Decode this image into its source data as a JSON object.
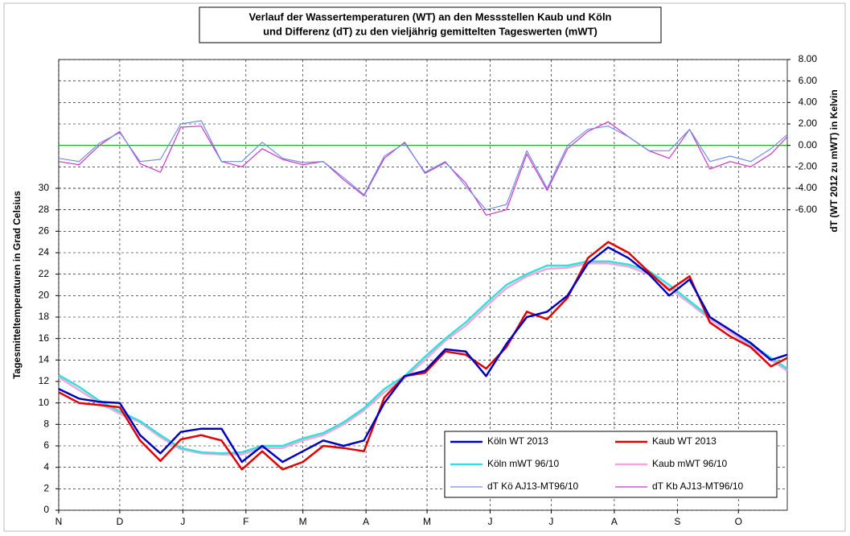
{
  "chart_data": {
    "type": "line",
    "title": [
      "Verlauf der Wassertemperaturen (WT) an den Messstellen Kaub und Köln",
      "und Differenz (dT) zu den vieljährig gemittelten Tageswerten (mWT)"
    ],
    "ylabel": "Tagesmitteltemperaturen in Grad Celsius",
    "y2label": "dT (WT 2012 zu mWT) in Kelvin",
    "x": [
      0,
      10,
      20,
      30,
      40,
      50,
      60,
      70,
      80,
      90,
      100,
      110,
      120,
      130,
      140,
      150,
      160,
      170,
      180,
      190,
      200,
      210,
      220,
      230,
      240,
      250,
      260,
      270,
      280,
      290,
      300,
      310,
      320,
      330,
      340,
      350,
      358
    ],
    "xlim": [
      0,
      358
    ],
    "xticks": [
      {
        "value": 0,
        "label": "N"
      },
      {
        "value": 30,
        "label": "D"
      },
      {
        "value": 61,
        "label": "J"
      },
      {
        "value": 92,
        "label": "F"
      },
      {
        "value": 120,
        "label": "M"
      },
      {
        "value": 151,
        "label": "A"
      },
      {
        "value": 181,
        "label": "M"
      },
      {
        "value": 212,
        "label": "J"
      },
      {
        "value": 242,
        "label": "J"
      },
      {
        "value": 273,
        "label": "A"
      },
      {
        "value": 304,
        "label": "S"
      },
      {
        "value": 334,
        "label": "O"
      }
    ],
    "ylim": [
      0,
      42
    ],
    "yticks": [
      0,
      2,
      4,
      6,
      8,
      10,
      12,
      14,
      16,
      18,
      20,
      22,
      24,
      26,
      28,
      30
    ],
    "y2lim": [
      -34,
      8
    ],
    "y2ticks": [
      {
        "value": -6,
        "label": "-6.00"
      },
      {
        "value": -4,
        "label": "-4.00"
      },
      {
        "value": -2,
        "label": "-2.00"
      },
      {
        "value": 0,
        "label": "0.00"
      },
      {
        "value": 2,
        "label": "2.00"
      },
      {
        "value": 4,
        "label": "4.00"
      },
      {
        "value": 6,
        "label": "6.00"
      },
      {
        "value": 8,
        "label": "8.00"
      }
    ],
    "grid": true,
    "zero_line": {
      "value": 0,
      "axis": "y2",
      "color": "#00b000"
    },
    "series": [
      {
        "name": "Köln WT 2013",
        "color": "#0000c0",
        "width": 2.5,
        "values": [
          11.3,
          10.4,
          10.1,
          10.0,
          7.0,
          5.3,
          7.3,
          7.6,
          7.6,
          4.5,
          6.0,
          4.5,
          5.5,
          6.5,
          6.0,
          6.5,
          10.0,
          12.5,
          13.0,
          15.0,
          14.8,
          12.5,
          15.5,
          18.0,
          18.5,
          20.0,
          23.0,
          24.5,
          23.5,
          22.0,
          20.0,
          21.5,
          18.0,
          16.8,
          15.6,
          14.0,
          14.5
        ]
      },
      {
        "name": "Kaub WT 2013",
        "color": "#e00000",
        "width": 2.5,
        "values": [
          11.0,
          10.0,
          9.8,
          9.6,
          6.5,
          4.6,
          6.6,
          7.0,
          6.5,
          3.8,
          5.5,
          3.8,
          4.5,
          6.0,
          5.8,
          5.5,
          10.5,
          12.5,
          12.8,
          14.8,
          14.5,
          13.2,
          15.2,
          18.5,
          17.8,
          19.8,
          23.5,
          25.0,
          24.0,
          22.2,
          20.5,
          21.8,
          17.5,
          16.2,
          15.2,
          13.4,
          14.2
        ]
      },
      {
        "name": "Köln mWT 96/10",
        "color": "#33e0e0",
        "width": 2.5,
        "values": [
          12.6,
          11.5,
          10.2,
          9.2,
          8.3,
          7.0,
          5.8,
          5.4,
          5.3,
          5.4,
          6.0,
          6.0,
          6.7,
          7.2,
          8.2,
          9.5,
          11.3,
          12.5,
          14.3,
          16.0,
          17.5,
          19.3,
          21.0,
          22.0,
          22.8,
          22.8,
          23.2,
          23.2,
          22.9,
          22.3,
          21.0,
          19.5,
          18.0,
          16.8,
          15.5,
          14.2,
          13.2
        ]
      },
      {
        "name": "Kaub mWT 96/10",
        "color": "#f0a8d8",
        "width": 2.5,
        "values": [
          12.4,
          11.2,
          10.0,
          9.0,
          8.2,
          6.8,
          5.7,
          5.3,
          5.2,
          5.2,
          5.8,
          5.8,
          6.5,
          7.0,
          8.0,
          9.3,
          11.0,
          12.3,
          14.0,
          15.8,
          17.2,
          19.0,
          20.7,
          21.8,
          22.5,
          22.6,
          23.0,
          23.0,
          22.7,
          22.0,
          20.7,
          19.3,
          17.8,
          16.6,
          15.3,
          14.0,
          13.0
        ]
      },
      {
        "name": "dT Kö AJ13-MT96/10",
        "color": "#6f8fe0",
        "width": 1.2,
        "axis": "y2",
        "values": [
          -1.2,
          -1.5,
          0.2,
          1.2,
          -1.5,
          -1.3,
          2.0,
          2.3,
          -1.5,
          -1.5,
          0.3,
          -1.2,
          -1.6,
          -1.5,
          -3.0,
          -4.6,
          -1.0,
          0.2,
          -2.5,
          -1.5,
          -3.8,
          -6.0,
          -5.5,
          -0.5,
          -4.0,
          0.0,
          1.5,
          1.8,
          0.8,
          -0.5,
          -0.5,
          1.5,
          -1.5,
          -1.0,
          -1.5,
          -0.3,
          1.0
        ]
      },
      {
        "name": "dT Kb AJ13-MT96/10",
        "color": "#cc33cc",
        "width": 1.2,
        "axis": "y2",
        "values": [
          -1.5,
          -1.8,
          0.0,
          1.3,
          -1.7,
          -2.5,
          1.7,
          1.8,
          -1.5,
          -2.0,
          -0.3,
          -1.3,
          -1.8,
          -1.5,
          -3.2,
          -4.7,
          -1.2,
          0.3,
          -2.6,
          -1.6,
          -3.5,
          -6.5,
          -6.0,
          -0.8,
          -4.2,
          -0.3,
          1.3,
          2.2,
          0.8,
          -0.5,
          -1.2,
          1.5,
          -2.2,
          -1.5,
          -2.0,
          -0.8,
          0.8
        ]
      }
    ]
  }
}
